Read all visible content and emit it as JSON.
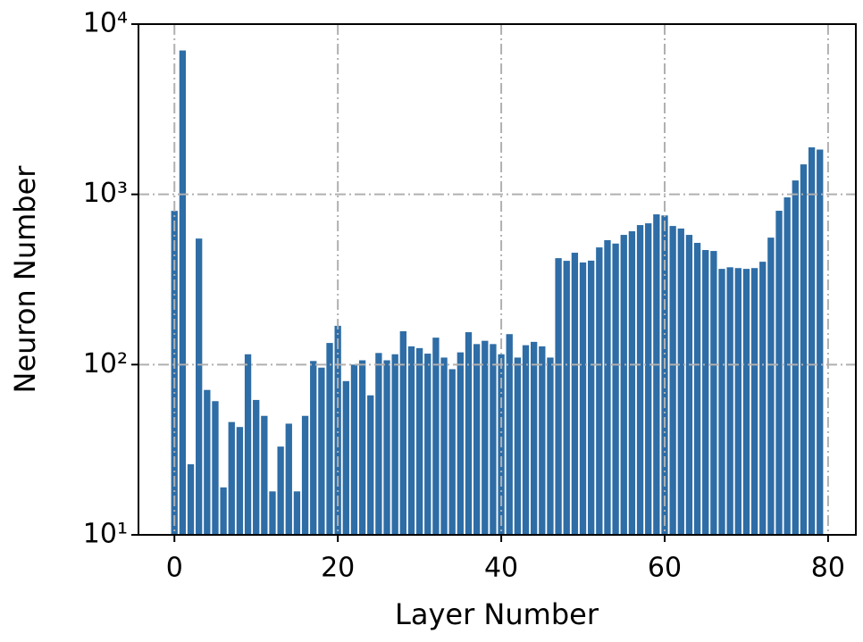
{
  "chart_data": {
    "type": "bar",
    "log_y": true,
    "grid": true,
    "color": "#2e6da6",
    "xlabel": "Layer Number",
    "ylabel": "Neuron Number",
    "x": [
      0,
      1,
      2,
      3,
      4,
      5,
      6,
      7,
      8,
      9,
      10,
      11,
      12,
      13,
      14,
      15,
      16,
      17,
      18,
      19,
      20,
      21,
      22,
      23,
      24,
      25,
      26,
      27,
      28,
      29,
      30,
      31,
      32,
      33,
      34,
      35,
      36,
      37,
      38,
      39,
      40,
      41,
      42,
      43,
      44,
      45,
      46,
      47,
      48,
      49,
      50,
      51,
      52,
      53,
      54,
      55,
      56,
      57,
      58,
      59,
      60,
      61,
      62,
      63,
      64,
      65,
      66,
      67,
      68,
      69,
      70,
      71,
      72,
      73,
      74,
      75,
      76,
      77,
      78,
      79
    ],
    "values": [
      800,
      7000,
      26,
      550,
      71,
      61,
      19,
      46,
      43,
      115,
      62,
      50,
      18,
      33,
      45,
      18,
      50,
      105,
      96,
      134,
      169,
      80,
      100,
      106,
      66,
      117,
      106,
      115,
      157,
      128,
      125,
      116,
      144,
      110,
      94,
      118,
      155,
      132,
      138,
      132,
      115,
      151,
      110,
      130,
      136,
      128,
      110,
      422,
      407,
      454,
      398,
      408,
      488,
      538,
      514,
      578,
      607,
      660,
      676,
      763,
      752,
      652,
      630,
      578,
      519,
      471,
      465,
      365,
      373,
      369,
      365,
      369,
      402,
      557,
      801,
      960,
      1207,
      1500,
      1888,
      1833
    ],
    "xlim": [
      -4.4,
      83.4
    ],
    "xticks": [
      0,
      20,
      40,
      60,
      80
    ],
    "ylim": [
      10,
      10000
    ],
    "yticks": [
      {
        "value": 10,
        "label": "10¹"
      },
      {
        "value": 100,
        "label": "10²"
      },
      {
        "value": 1000,
        "label": "10³"
      },
      {
        "value": 10000,
        "label": "10⁴"
      }
    ]
  }
}
